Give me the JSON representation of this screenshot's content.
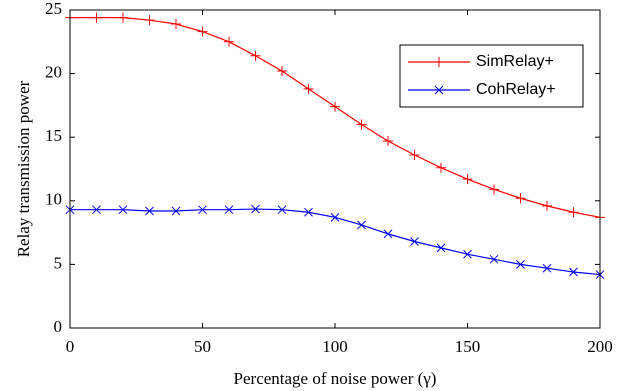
{
  "chart_data": {
    "type": "line",
    "x_label": "Percentage of noise power (γ)",
    "y_label": "Relay transmission power",
    "x": [
      0,
      10,
      20,
      30,
      40,
      50,
      60,
      70,
      80,
      90,
      100,
      110,
      120,
      130,
      140,
      150,
      160,
      170,
      180,
      190,
      200
    ],
    "series": [
      {
        "name": "SimRelay+",
        "color": "#ff0000",
        "marker": "plus",
        "values": [
          24.4,
          24.4,
          24.4,
          24.2,
          23.9,
          23.3,
          22.5,
          21.4,
          20.2,
          18.8,
          17.4,
          16.0,
          14.7,
          13.6,
          12.6,
          11.7,
          10.9,
          10.2,
          9.6,
          9.1,
          8.7
        ]
      },
      {
        "name": "CohRelay+",
        "color": "#0000ff",
        "marker": "x",
        "values": [
          9.3,
          9.3,
          9.3,
          9.2,
          9.2,
          9.3,
          9.3,
          9.35,
          9.3,
          9.1,
          8.7,
          8.1,
          7.4,
          6.8,
          6.3,
          5.8,
          5.4,
          5.0,
          4.7,
          4.4,
          4.2
        ]
      }
    ],
    "xlim": [
      0,
      200
    ],
    "xticks": [
      0,
      50,
      100,
      150,
      200
    ],
    "ylim": [
      0,
      25
    ],
    "yticks": [
      0,
      5,
      10,
      15,
      20,
      25
    ],
    "legend": "upper right"
  }
}
